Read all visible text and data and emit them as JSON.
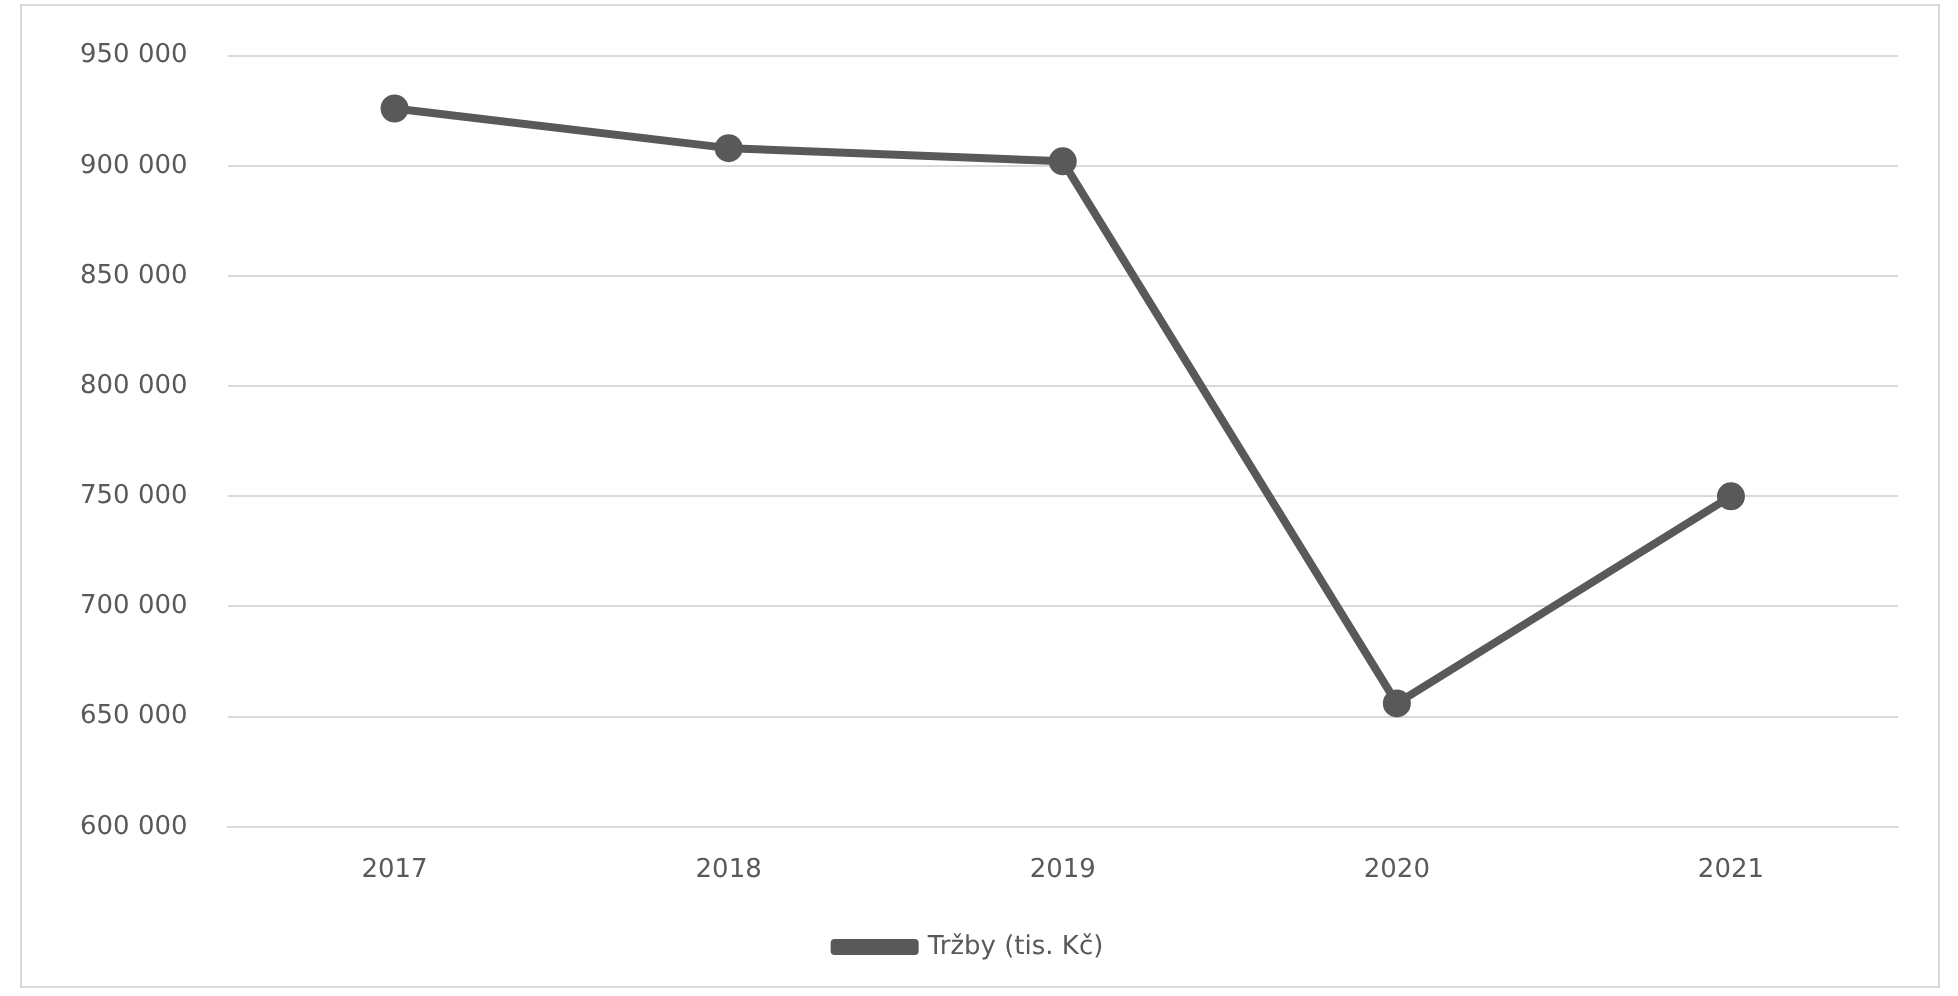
{
  "chart_data": {
    "type": "line",
    "categories": [
      "2017",
      "2018",
      "2019",
      "2020",
      "2021"
    ],
    "series": [
      {
        "name": "Tržby (tis. Kč)",
        "color": "#595959",
        "values": [
          926000,
          908000,
          902000,
          656000,
          750000
        ]
      }
    ],
    "ylim": [
      600000,
      950000
    ],
    "yticks": [
      {
        "value": 600000,
        "label": "600 000"
      },
      {
        "value": 650000,
        "label": "650 000"
      },
      {
        "value": 700000,
        "label": "700 000"
      },
      {
        "value": 750000,
        "label": "750 000"
      },
      {
        "value": 800000,
        "label": "800 000"
      },
      {
        "value": 850000,
        "label": "850 000"
      },
      {
        "value": 900000,
        "label": "900 000"
      },
      {
        "value": 950000,
        "label": "950 000"
      }
    ],
    "grid": "y",
    "legend": "bottom",
    "marker": "circle",
    "line_style": "solid"
  }
}
